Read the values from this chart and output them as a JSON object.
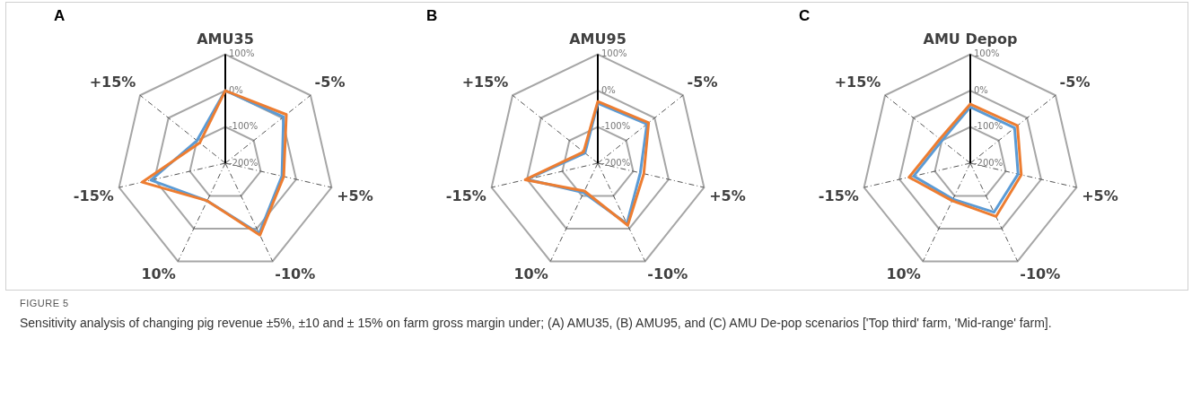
{
  "chart_data": [
    {
      "type": "radar",
      "title": "A",
      "categories": [
        "AMU35",
        "-5%",
        "+5%",
        "-10%",
        "10%",
        "-15%",
        "+15%"
      ],
      "ylim": [
        -200,
        100
      ],
      "yticks": [
        {
          "value": -200,
          "label": "-200%"
        },
        {
          "value": -100,
          "label": "-100%"
        },
        {
          "value": 0,
          "label": "0%"
        },
        {
          "value": 100,
          "label": "100%"
        }
      ],
      "grid": true,
      "legend": false,
      "marker": "none",
      "series": [
        {
          "color": "#5b9bd5",
          "values": [
            0,
            5,
            -40,
            15,
            -85,
            10,
            -100
          ]
        },
        {
          "color": "#ed7d31",
          "values": [
            0,
            15,
            -35,
            20,
            -85,
            35,
            -110
          ]
        }
      ],
      "annotations": [
        "FIGURE 5",
        "Sensitivity analysis of changing pig revenue ±5%, ±10 and ± 15% on farm gross margin under; (A) AMU35, (B) AMU95, and (C) AMU De-pop scenarios ['Top third' farm, 'Mid-range' farm]."
      ]
    },
    {
      "type": "radar",
      "title": "B",
      "categories": [
        "AMU95",
        "-5%",
        "+5%",
        "-10%",
        "10%",
        "-15%",
        "+15%"
      ],
      "ylim": [
        -200,
        100
      ],
      "yticks": [
        {
          "value": -200,
          "label": "-200%"
        },
        {
          "value": -100,
          "label": "-100%"
        },
        {
          "value": 0,
          "label": "0%"
        },
        {
          "value": 100,
          "label": "100%"
        }
      ],
      "grid": true,
      "legend": false,
      "marker": "none",
      "series": [
        {
          "color": "#5b9bd5",
          "values": [
            -35,
            -27,
            -80,
            -15,
            -110,
            0,
            -155
          ]
        },
        {
          "color": "#ed7d31",
          "values": [
            -30,
            -21,
            -70,
            -10,
            -115,
            5,
            -150
          ]
        }
      ]
    },
    {
      "type": "radar",
      "title": "C",
      "categories": [
        "AMU Depop",
        "-5%",
        "+5%",
        "-10%",
        "10%",
        "-15%",
        "+15%"
      ],
      "ylim": [
        -200,
        100
      ],
      "yticks": [
        {
          "value": -200,
          "label": "-200%"
        },
        {
          "value": -100,
          "label": "-100%"
        },
        {
          "value": 0,
          "label": "0%"
        },
        {
          "value": 100,
          "label": "100%"
        }
      ],
      "grid": true,
      "legend": false,
      "marker": "none",
      "series": [
        {
          "color": "#5b9bd5",
          "values": [
            -45,
            -44,
            -65,
            -50,
            -90,
            -40,
            -100
          ]
        },
        {
          "color": "#ed7d31",
          "values": [
            -37,
            -34,
            -56,
            -37,
            -85,
            -27,
            -93
          ]
        }
      ]
    }
  ]
}
